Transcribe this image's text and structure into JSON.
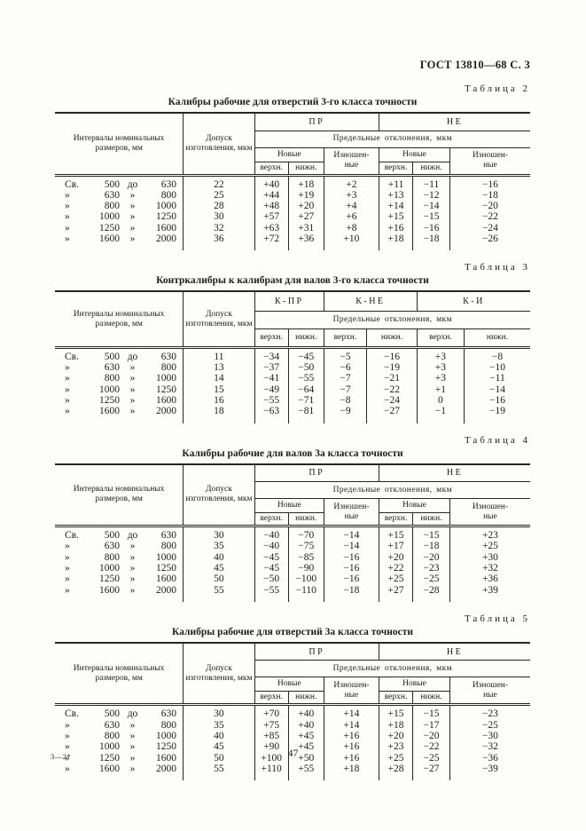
{
  "page": {
    "doc_ref": "ГОСТ 13810—68 С. 3",
    "footer_left": "3—2*",
    "page_number": "47"
  },
  "labels": {
    "intervals": "Интервалы номинальных размеров, мм",
    "tolerance": "Допуск изготовления, мкм",
    "limits": "Предельные отклонения, мкм",
    "new": "Новые",
    "worn": "Изношен-\nные",
    "upper": "верхн.",
    "lower": "нижн."
  },
  "tables": [
    {
      "caption": "Таблица 2",
      "title": "Калибры рабочие для отверстий 3-го класса точности",
      "groups": [
        "ПР",
        "НЕ"
      ],
      "rows": [
        {
          "range": [
            "Св.",
            "500",
            "до",
            "630"
          ],
          "values": [
            "22",
            "+40",
            "+18",
            "+2",
            "+11",
            "−11",
            "−16"
          ]
        },
        {
          "range": [
            "»",
            "630",
            "»",
            "800"
          ],
          "values": [
            "25",
            "+44",
            "+19",
            "+3",
            "+13",
            "−12",
            "−18"
          ]
        },
        {
          "range": [
            "»",
            "800",
            "»",
            "1000"
          ],
          "values": [
            "28",
            "+48",
            "+20",
            "+4",
            "+14",
            "−14",
            "−20"
          ]
        },
        {
          "range": [
            "»",
            "1000",
            "»",
            "1250"
          ],
          "values": [
            "30",
            "+57",
            "+27",
            "+6",
            "+15",
            "−15",
            "−22"
          ]
        },
        {
          "range": [
            "»",
            "1250",
            "»",
            "1600"
          ],
          "values": [
            "32",
            "+63",
            "+31",
            "+8",
            "+16",
            "−16",
            "−24"
          ]
        },
        {
          "range": [
            "»",
            "1600",
            "»",
            "2000"
          ],
          "values": [
            "36",
            "+72",
            "+36",
            "+10",
            "+18",
            "−18",
            "−26"
          ]
        }
      ]
    },
    {
      "caption": "Таблица 3",
      "title": "Контркалибры к калибрам для валов 3-го класса точности",
      "groups": [
        "К-ПР",
        "К-НЕ",
        "К-И"
      ],
      "rows": [
        {
          "range": [
            "Св.",
            "500",
            "до",
            "630"
          ],
          "values": [
            "11",
            "−34",
            "−45",
            "−5",
            "−16",
            "+3",
            "−8"
          ]
        },
        {
          "range": [
            "»",
            "630",
            "»",
            "800"
          ],
          "values": [
            "13",
            "−37",
            "−50",
            "−6",
            "−19",
            "+3",
            "−10"
          ]
        },
        {
          "range": [
            "»",
            "800",
            "»",
            "1000"
          ],
          "values": [
            "14",
            "−41",
            "−55",
            "−7",
            "−21",
            "+3",
            "−11"
          ]
        },
        {
          "range": [
            "»",
            "1000",
            "»",
            "1250"
          ],
          "values": [
            "15",
            "−49",
            "−64",
            "−7",
            "−22",
            "+1",
            "−14"
          ]
        },
        {
          "range": [
            "»",
            "1250",
            "»",
            "1600"
          ],
          "values": [
            "16",
            "−55",
            "−71",
            "−8",
            "−24",
            "0",
            "−16"
          ]
        },
        {
          "range": [
            "»",
            "1600",
            "»",
            "2000"
          ],
          "values": [
            "18",
            "−63",
            "−81",
            "−9",
            "−27",
            "−1",
            "−19"
          ]
        }
      ]
    },
    {
      "caption": "Таблица 4",
      "title": "Калибры рабочие для валов 3а класса точности",
      "groups": [
        "ПР",
        "НЕ"
      ],
      "rows": [
        {
          "range": [
            "Св.",
            "500",
            "до",
            "630"
          ],
          "values": [
            "30",
            "−40",
            "−70",
            "−14",
            "+15",
            "−15",
            "+23"
          ]
        },
        {
          "range": [
            "»",
            "630",
            "»",
            "800"
          ],
          "values": [
            "35",
            "−40",
            "−75",
            "−14",
            "+17",
            "−18",
            "+25"
          ]
        },
        {
          "range": [
            "»",
            "800",
            "»",
            "1000"
          ],
          "values": [
            "40",
            "−45",
            "−85",
            "−16",
            "+20",
            "−20",
            "+30"
          ]
        },
        {
          "range": [
            "»",
            "1000",
            "»",
            "1250"
          ],
          "values": [
            "45",
            "−45",
            "−90",
            "−16",
            "+22",
            "−23",
            "+32"
          ]
        },
        {
          "range": [
            "»",
            "1250",
            "»",
            "1600"
          ],
          "values": [
            "50",
            "−50",
            "−100",
            "−16",
            "+25",
            "−25",
            "+36"
          ]
        },
        {
          "range": [
            "»",
            "1600",
            "»",
            "2000"
          ],
          "values": [
            "55",
            "−55",
            "−110",
            "−18",
            "+27",
            "−28",
            "+39"
          ]
        }
      ]
    },
    {
      "caption": "Таблица 5",
      "title": "Калибры рабочие для отверстий 3а класса точности",
      "groups": [
        "ПР",
        "НЕ"
      ],
      "rows": [
        {
          "range": [
            "Св.",
            "500",
            "до",
            "630"
          ],
          "values": [
            "30",
            "+70",
            "+40",
            "+14",
            "+15",
            "−15",
            "−23"
          ]
        },
        {
          "range": [
            "»",
            "630",
            "»",
            "800"
          ],
          "values": [
            "35",
            "+75",
            "+40",
            "+14",
            "+18",
            "−17",
            "−25"
          ]
        },
        {
          "range": [
            "»",
            "800",
            "»",
            "1000"
          ],
          "values": [
            "40",
            "+85",
            "+45",
            "+16",
            "+20",
            "−20",
            "−30"
          ]
        },
        {
          "range": [
            "»",
            "1000",
            "»",
            "1250"
          ],
          "values": [
            "45",
            "+90",
            "+45",
            "+16",
            "+23",
            "−22",
            "−32"
          ]
        },
        {
          "range": [
            "»",
            "1250",
            "»",
            "1600"
          ],
          "values": [
            "50",
            "+100",
            "+50",
            "+16",
            "+25",
            "−25",
            "−36"
          ]
        },
        {
          "range": [
            "»",
            "1600",
            "»",
            "2000"
          ],
          "values": [
            "55",
            "+110",
            "+55",
            "+18",
            "+28",
            "−27",
            "−39"
          ]
        }
      ]
    }
  ]
}
